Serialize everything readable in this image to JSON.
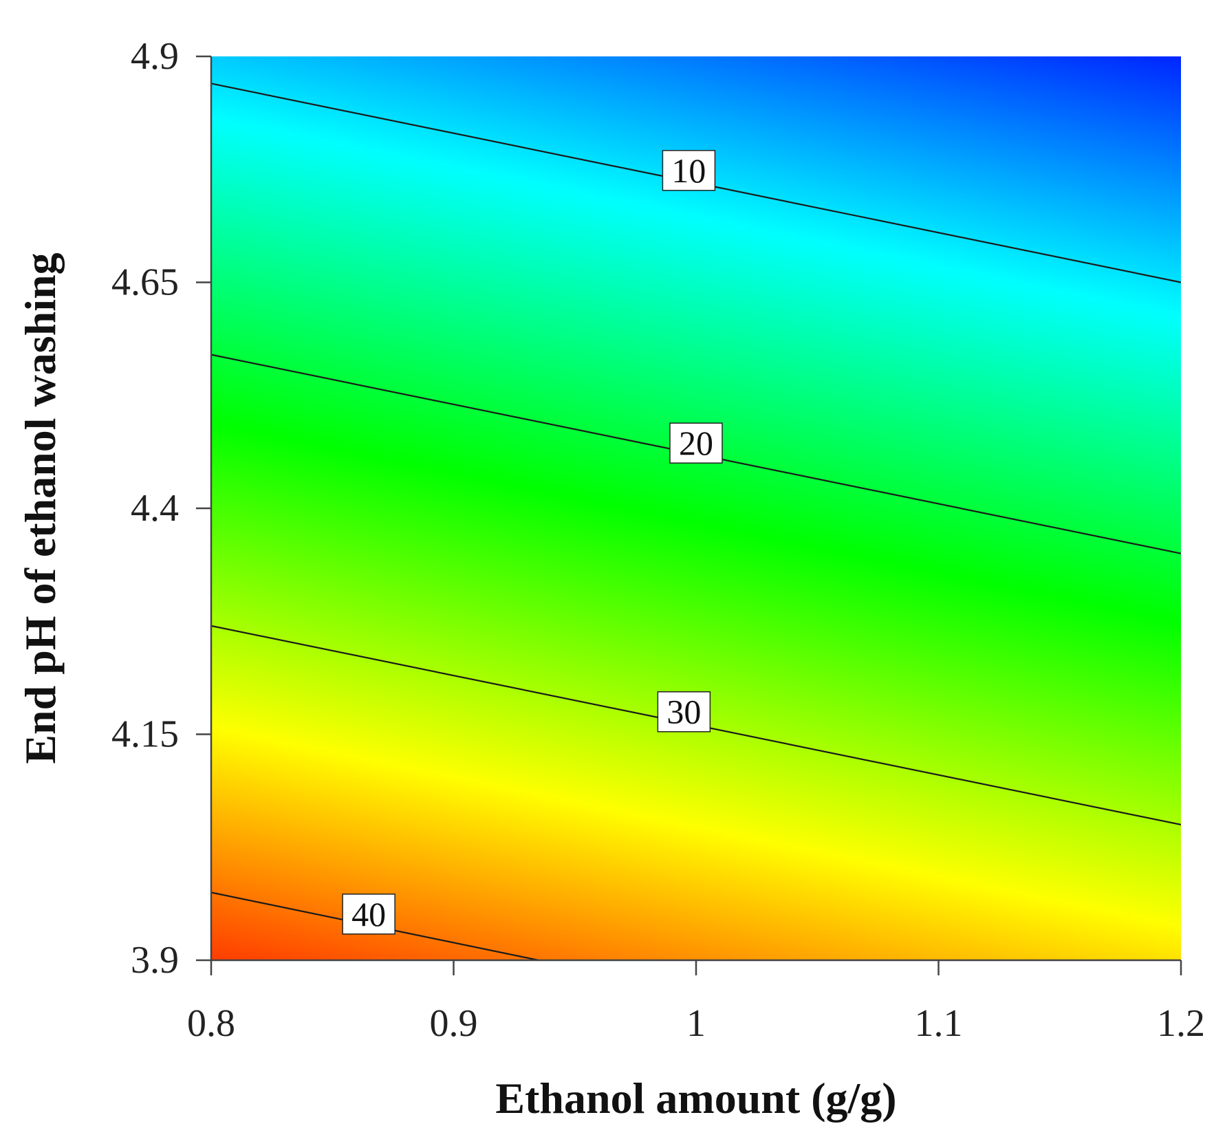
{
  "chart_data": {
    "type": "heatmap",
    "subtype": "contour",
    "title": "",
    "xlabel": "Ethanol amount (g/g)",
    "ylabel": "End pH of ethanol washing",
    "xlim": [
      0.8,
      1.2
    ],
    "ylim": [
      3.9,
      4.9
    ],
    "x_ticks": [
      0.8,
      0.9,
      1.0,
      1.1,
      1.2
    ],
    "x_tick_labels": [
      "0.8",
      "0.9",
      "1",
      "1.1",
      "1.2"
    ],
    "y_ticks": [
      3.9,
      4.15,
      4.4,
      4.65,
      4.9
    ],
    "y_tick_labels": [
      "3.9",
      "4.15",
      "4.4",
      "4.65",
      "4.9"
    ],
    "colormap": [
      "#ff0000",
      "#ffff00",
      "#00ff00",
      "#00ffff",
      "#0000ff"
    ],
    "z_range": [
      0,
      45
    ],
    "contours": [
      {
        "level": 10,
        "label": "10",
        "points": [
          [
            0.8,
            4.87
          ],
          [
            1.2,
            4.65
          ]
        ],
        "label_x": 0.997
      },
      {
        "level": 20,
        "label": "20",
        "points": [
          [
            0.8,
            4.57
          ],
          [
            1.2,
            4.35
          ]
        ],
        "label_x": 1.0
      },
      {
        "level": 30,
        "label": "30",
        "points": [
          [
            0.8,
            4.27
          ],
          [
            1.2,
            4.05
          ]
        ],
        "label_x": 0.995
      },
      {
        "level": 40,
        "label": "40",
        "points": [
          [
            0.8,
            3.975
          ],
          [
            0.935,
            3.9
          ]
        ],
        "label_x": 0.865
      }
    ]
  }
}
